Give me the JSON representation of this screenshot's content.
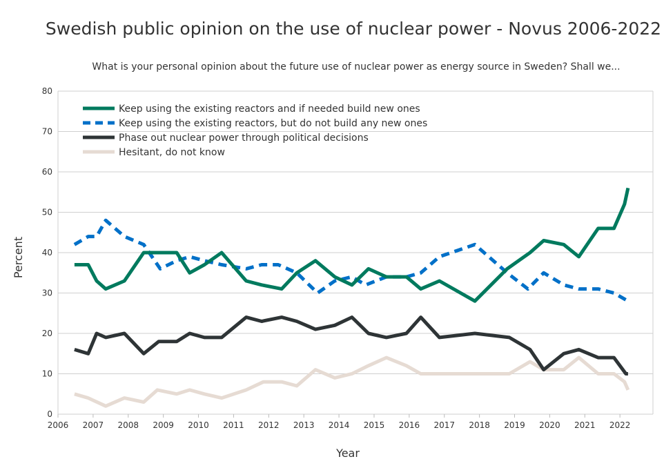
{
  "chart_data": {
    "type": "line",
    "title": "Swedish public opinion on the use of nuclear power - Novus 2006-2022",
    "subtitle": "What is your personal opinion about the future use of nuclear power as energy source in Sweden? Shall we...",
    "xlabel": "Year",
    "ylabel": "Percent",
    "xlim": [
      2006,
      2022.94
    ],
    "ylim": [
      0,
      80
    ],
    "xticks": [
      2006,
      2007,
      2008,
      2009,
      2010,
      2011,
      2012,
      2013,
      2014,
      2015,
      2016,
      2017,
      2018,
      2019,
      2020,
      2021,
      2022
    ],
    "yticks": [
      0,
      10,
      20,
      30,
      40,
      50,
      60,
      70,
      80
    ],
    "grid": "horizontal",
    "legend": "top-left",
    "series": [
      {
        "name": "Keep using the existing reactors and if needed build new ones",
        "color": "#007a5e",
        "dash": false,
        "points": [
          [
            2006.47,
            37
          ],
          [
            2006.86,
            37
          ],
          [
            2007.1,
            33
          ],
          [
            2007.36,
            31
          ],
          [
            2007.89,
            33
          ],
          [
            2008.44,
            40
          ],
          [
            2008.87,
            40
          ],
          [
            2009.38,
            40
          ],
          [
            2009.75,
            35
          ],
          [
            2010.17,
            37
          ],
          [
            2010.66,
            40
          ],
          [
            2011.36,
            33
          ],
          [
            2011.8,
            32
          ],
          [
            2012.37,
            31
          ],
          [
            2012.8,
            35
          ],
          [
            2013.33,
            38
          ],
          [
            2013.88,
            34
          ],
          [
            2014.37,
            32
          ],
          [
            2014.84,
            36
          ],
          [
            2015.35,
            34
          ],
          [
            2015.92,
            34
          ],
          [
            2016.33,
            31
          ],
          [
            2016.86,
            33
          ],
          [
            2017.87,
            28
          ],
          [
            2018.79,
            36
          ],
          [
            2019.44,
            40
          ],
          [
            2019.83,
            43
          ],
          [
            2020.4,
            42
          ],
          [
            2020.83,
            39
          ],
          [
            2021.38,
            46
          ],
          [
            2021.83,
            46
          ],
          [
            2022.13,
            52
          ],
          [
            2022.23,
            56
          ]
        ]
      },
      {
        "name": "Keep using the existing reactors, but do not build any new ones",
        "color": "#0070c8",
        "dash": true,
        "points": [
          [
            2006.47,
            42
          ],
          [
            2006.86,
            44
          ],
          [
            2007.1,
            44
          ],
          [
            2007.36,
            48
          ],
          [
            2007.89,
            44
          ],
          [
            2008.44,
            42
          ],
          [
            2008.91,
            36
          ],
          [
            2009.38,
            38
          ],
          [
            2009.75,
            39
          ],
          [
            2010.17,
            38
          ],
          [
            2010.66,
            37
          ],
          [
            2011.36,
            36
          ],
          [
            2011.8,
            37
          ],
          [
            2012.27,
            37
          ],
          [
            2012.8,
            35
          ],
          [
            2013.39,
            30
          ],
          [
            2013.88,
            33
          ],
          [
            2014.37,
            34
          ],
          [
            2014.76,
            32
          ],
          [
            2015.35,
            34
          ],
          [
            2015.92,
            34
          ],
          [
            2016.33,
            35
          ],
          [
            2016.86,
            39
          ],
          [
            2017.87,
            42
          ],
          [
            2018.79,
            35
          ],
          [
            2019.38,
            31
          ],
          [
            2019.83,
            35
          ],
          [
            2020.4,
            32
          ],
          [
            2020.83,
            31
          ],
          [
            2021.38,
            31
          ],
          [
            2021.83,
            30
          ],
          [
            2022.23,
            28
          ]
        ]
      },
      {
        "name": "Phase out nuclear power through political decisions",
        "color": "#2e3436",
        "dash": false,
        "points": [
          [
            2006.47,
            16
          ],
          [
            2006.86,
            15
          ],
          [
            2007.1,
            20
          ],
          [
            2007.36,
            19
          ],
          [
            2007.89,
            20
          ],
          [
            2008.44,
            15
          ],
          [
            2008.87,
            18
          ],
          [
            2009.38,
            18
          ],
          [
            2009.75,
            20
          ],
          [
            2010.17,
            19
          ],
          [
            2010.66,
            19
          ],
          [
            2011.36,
            24
          ],
          [
            2011.8,
            23
          ],
          [
            2012.37,
            24
          ],
          [
            2012.8,
            23
          ],
          [
            2013.33,
            21
          ],
          [
            2013.88,
            22
          ],
          [
            2014.37,
            24
          ],
          [
            2014.84,
            20
          ],
          [
            2015.35,
            19
          ],
          [
            2015.92,
            20
          ],
          [
            2016.33,
            24
          ],
          [
            2016.86,
            19
          ],
          [
            2017.87,
            20
          ],
          [
            2018.85,
            19
          ],
          [
            2019.44,
            16
          ],
          [
            2019.83,
            11
          ],
          [
            2020.4,
            15
          ],
          [
            2020.83,
            16
          ],
          [
            2021.38,
            14
          ],
          [
            2021.83,
            14
          ],
          [
            2022.17,
            10
          ],
          [
            2022.23,
            10
          ]
        ]
      },
      {
        "name": "Hesitant, do not know",
        "color": "#e6dbd3",
        "dash": false,
        "points": [
          [
            2006.47,
            5
          ],
          [
            2006.86,
            4
          ],
          [
            2007.36,
            2
          ],
          [
            2007.89,
            4
          ],
          [
            2008.44,
            3
          ],
          [
            2008.83,
            6
          ],
          [
            2009.38,
            5
          ],
          [
            2009.75,
            6
          ],
          [
            2010.17,
            5
          ],
          [
            2010.66,
            4
          ],
          [
            2011.36,
            6
          ],
          [
            2011.85,
            8
          ],
          [
            2012.37,
            8
          ],
          [
            2012.8,
            7
          ],
          [
            2013.33,
            11
          ],
          [
            2013.88,
            9
          ],
          [
            2014.37,
            10
          ],
          [
            2014.84,
            12
          ],
          [
            2015.35,
            14
          ],
          [
            2015.92,
            12
          ],
          [
            2016.33,
            10
          ],
          [
            2017.87,
            10
          ],
          [
            2018.85,
            10
          ],
          [
            2019.44,
            13
          ],
          [
            2019.83,
            11
          ],
          [
            2020.4,
            11
          ],
          [
            2020.83,
            14
          ],
          [
            2021.38,
            10
          ],
          [
            2021.83,
            10
          ],
          [
            2022.13,
            8
          ],
          [
            2022.23,
            6
          ]
        ]
      }
    ]
  }
}
